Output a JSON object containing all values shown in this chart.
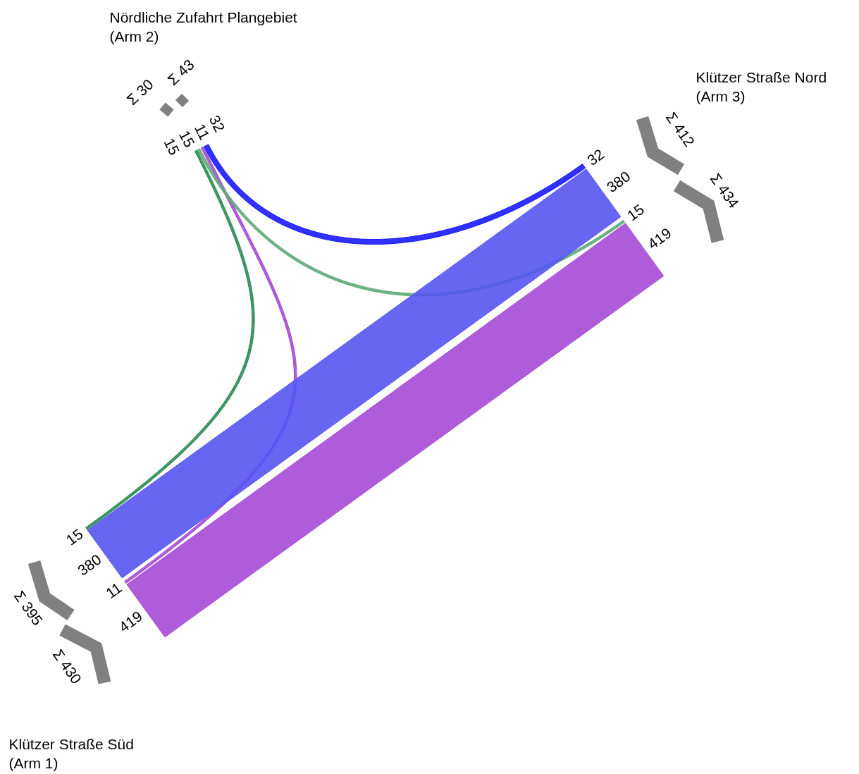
{
  "chart_data": {
    "type": "other",
    "categories": [
      "Klützer Straße Süd\n(Arm 1)",
      "Nördliche Zufahrt Plangebiet\n(Arm 2)",
      "Klützer Straße Nord\n(Arm 3)"
    ],
    "series": [
      {
        "color": "#a64ad6",
        "values": [
          419,
          null,
          419
        ]
      },
      {
        "color": "#a64ad6",
        "values": [
          11,
          11,
          null
        ]
      },
      {
        "color": "#2e8b57",
        "values": [
          15,
          15,
          null
        ]
      },
      {
        "color": "#5faa7a",
        "values": [
          null,
          15,
          15
        ]
      },
      {
        "color": "#5555f2",
        "values": [
          380,
          null,
          380
        ]
      },
      {
        "color": "#1a1aff",
        "values": [
          null,
          32,
          32
        ]
      }
    ],
    "data_labels": true,
    "totals": [
      "Σ 395",
      "Σ 430",
      "Σ 30",
      "Σ 43",
      "Σ 412",
      "Σ 434"
    ]
  }
}
